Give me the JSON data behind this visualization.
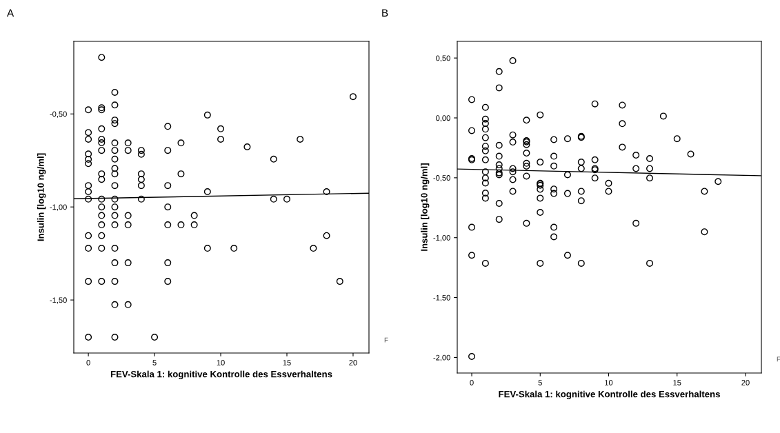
{
  "chart_data": [
    {
      "type": "scatter",
      "title": "A",
      "xlabel": "FEV-Skala 1: kognitive Kontrolle des Essverhaltens",
      "ylabel": "Insulin [log10 ng/ml]",
      "xlim": [
        -1.1,
        21.2
      ],
      "ylim": [
        -1.785,
        -0.11
      ],
      "xticks": [
        0,
        5,
        10,
        15,
        20
      ],
      "yticks": [
        {
          "value": -0.5,
          "label": "-0,50"
        },
        {
          "value": -1.0,
          "label": "-1,00"
        },
        {
          "value": -1.5,
          "label": "-1,50"
        }
      ],
      "grid": false,
      "legend": false,
      "marker": "circle",
      "annotations": [
        "F"
      ],
      "series": [
        {
          "color": "#000000",
          "x": [
            0,
            0,
            0,
            0,
            0,
            0,
            0,
            0,
            0,
            0,
            0,
            0,
            0,
            1,
            1,
            1,
            1,
            1,
            1,
            1,
            1,
            1,
            1,
            1,
            1,
            1,
            1,
            1,
            1,
            2,
            2,
            2,
            2,
            2,
            2,
            2,
            2,
            2,
            2,
            2,
            2,
            2,
            2,
            2,
            2,
            2,
            2,
            2,
            3,
            3,
            3,
            3,
            3,
            3,
            4,
            4,
            4,
            4,
            4,
            4,
            5,
            6,
            6,
            6,
            6,
            6,
            6,
            6,
            7,
            7,
            7,
            8,
            8,
            9,
            9,
            9,
            10,
            10,
            11,
            12,
            14,
            14,
            15,
            16,
            17,
            18,
            18,
            19,
            20
          ],
          "values": [
            -0.478,
            -0.6,
            -0.636,
            -0.715,
            -0.744,
            -0.767,
            -0.885,
            -0.918,
            -0.958,
            -1.154,
            -1.222,
            -1.4,
            -1.7,
            -0.196,
            -0.467,
            -0.478,
            -0.58,
            -0.636,
            -0.655,
            -0.696,
            -0.822,
            -0.852,
            -0.958,
            -1.0,
            -1.046,
            -1.096,
            -1.154,
            -1.222,
            -1.4,
            -0.384,
            -0.452,
            -0.533,
            -0.552,
            -0.656,
            -0.696,
            -0.743,
            -0.793,
            -0.822,
            -0.885,
            -0.958,
            -1.0,
            -1.046,
            -1.096,
            -1.222,
            -1.3,
            -1.4,
            -1.525,
            -1.7,
            -0.656,
            -0.696,
            -1.046,
            -1.096,
            -1.3,
            -1.525,
            -0.696,
            -0.717,
            -0.822,
            -0.852,
            -0.885,
            -0.958,
            -1.7,
            -0.567,
            -0.696,
            -0.885,
            -1.0,
            -1.096,
            -1.3,
            -1.4,
            -0.656,
            -0.822,
            -1.096,
            -1.046,
            -1.096,
            -0.506,
            -0.918,
            -1.222,
            -0.58,
            -0.636,
            -1.222,
            -0.677,
            -0.743,
            -0.958,
            -0.958,
            -0.636,
            -1.222,
            -0.918,
            -1.154,
            -1.4,
            -0.407
          ]
        },
        {
          "type": "line",
          "color": "#000000",
          "marker": "none",
          "x": [
            -1.1,
            21.2
          ],
          "values": [
            -0.956,
            -0.926
          ]
        }
      ]
    },
    {
      "type": "scatter",
      "title": "B",
      "xlabel": "FEV-Skala 1: kognitive Kontrolle des Essverhaltens",
      "ylabel": "Insulin [log10 ng/ml]",
      "xlim": [
        -1.06,
        21.16
      ],
      "ylim": [
        -2.13,
        0.639
      ],
      "xticks": [
        0,
        5,
        10,
        15,
        20
      ],
      "yticks": [
        {
          "value": 0.5,
          "label": "0,50"
        },
        {
          "value": 0.0,
          "label": "0,00"
        },
        {
          "value": -0.5,
          "label": "-0,50"
        },
        {
          "value": -1.0,
          "label": "-1,00"
        },
        {
          "value": -1.5,
          "label": "-1,50"
        },
        {
          "value": -2.0,
          "label": "-2,00"
        }
      ],
      "grid": false,
      "legend": false,
      "marker": "circle",
      "annotations": [
        "F"
      ],
      "series": [
        {
          "color": "#000000",
          "x": [
            0,
            0,
            0,
            0,
            0,
            0,
            0,
            1,
            1,
            1,
            1,
            1,
            1,
            1,
            1,
            1,
            1,
            1,
            1,
            1,
            1,
            2,
            2,
            2,
            2,
            2,
            2,
            2,
            2,
            2,
            2,
            3,
            3,
            3,
            3,
            3,
            3,
            3,
            4,
            4,
            4,
            4,
            4,
            4,
            4,
            4,
            4,
            5,
            5,
            5,
            5,
            5,
            5,
            5,
            5,
            5,
            6,
            6,
            6,
            6,
            6,
            6,
            6,
            7,
            7,
            7,
            7,
            8,
            8,
            8,
            8,
            8,
            8,
            8,
            9,
            9,
            9,
            9,
            9,
            10,
            10,
            11,
            11,
            11,
            12,
            12,
            12,
            13,
            13,
            13,
            13,
            14,
            15,
            16,
            17,
            17,
            18
          ],
          "values": [
            0.153,
            -0.106,
            -0.34,
            -0.35,
            -0.913,
            -1.147,
            -1.992,
            0.088,
            -0.01,
            -0.046,
            -0.094,
            -0.165,
            -0.237,
            -0.275,
            -0.35,
            -0.45,
            -0.502,
            -0.544,
            -0.628,
            -0.67,
            -1.214,
            0.387,
            0.251,
            -0.229,
            -0.32,
            -0.392,
            -0.423,
            -0.459,
            -0.475,
            -0.714,
            -0.847,
            0.478,
            -0.142,
            -0.202,
            -0.423,
            -0.45,
            -0.515,
            -0.613,
            -0.019,
            -0.19,
            -0.2,
            -0.223,
            -0.294,
            -0.379,
            -0.403,
            -0.486,
            -0.88,
            0.025,
            -0.369,
            -0.546,
            -0.563,
            -0.596,
            -0.67,
            -0.789,
            -1.214,
            -0.55,
            -0.181,
            -0.32,
            -0.402,
            -0.594,
            -0.631,
            -0.913,
            -0.993,
            -0.174,
            -0.475,
            -0.631,
            -1.147,
            -0.154,
            -0.163,
            -0.369,
            -0.423,
            -0.613,
            -0.692,
            -1.214,
            0.117,
            -0.35,
            -0.423,
            -0.433,
            -0.502,
            -0.546,
            -0.613,
            0.107,
            -0.048,
            -0.244,
            -0.311,
            -0.423,
            -0.88,
            -0.34,
            -0.423,
            -0.502,
            -1.214,
            0.015,
            -0.174,
            -0.302,
            -0.613,
            -0.951,
            -0.531
          ]
        },
        {
          "type": "line",
          "color": "#000000",
          "marker": "none",
          "x": [
            -1.06,
            21.16
          ],
          "values": [
            -0.427,
            -0.483
          ]
        }
      ]
    }
  ]
}
